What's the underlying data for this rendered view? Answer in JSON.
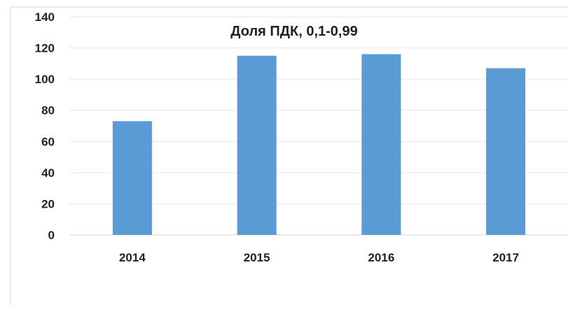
{
  "chart_data": {
    "type": "bar",
    "title": "Доля ПДК, 0,1-0,99",
    "categories": [
      "2014",
      "2015",
      "2016",
      "2017"
    ],
    "values": [
      73,
      115,
      116,
      107
    ],
    "xlabel": "",
    "ylabel": "",
    "ylim": [
      0,
      140
    ],
    "yticks": [
      0,
      20,
      40,
      60,
      80,
      100,
      120,
      140
    ],
    "grid": true,
    "legend": "none",
    "colors": {
      "bar": "#5b9bd5",
      "grid": "#e6e6e6",
      "text": "#222222"
    }
  }
}
